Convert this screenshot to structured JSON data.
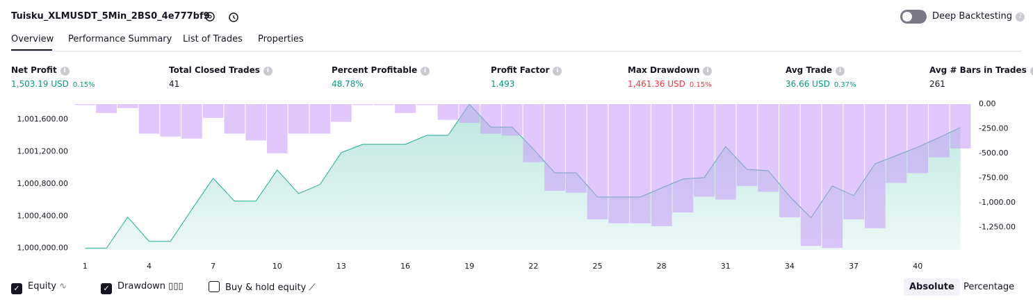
{
  "header": {
    "title": "Tuisku_XLMUSDT_5Min_2BS0_4e777bf9",
    "deep_backtesting": "Deep Backtesting"
  },
  "tabs": [
    "Overview",
    "Performance Summary",
    "List of Trades",
    "Properties"
  ],
  "metrics": [
    {
      "label": "Net Profit",
      "value": "1,503.19 USD",
      "pct": "0.15%",
      "color": "#089981"
    },
    {
      "label": "Total Closed Trades",
      "value": "41",
      "color": "#131722"
    },
    {
      "label": "Percent Profitable",
      "value": "48.78%",
      "color": "#089981"
    },
    {
      "label": "Profit Factor",
      "value": "1.493",
      "color": "#089981"
    },
    {
      "label": "Max Drawdown",
      "value": "1,461.36 USD",
      "pct": "0.15%",
      "color": "#f23645"
    },
    {
      "label": "Avg Trade",
      "value": "36.66 USD",
      "pct": "0.37%",
      "color": "#089981"
    },
    {
      "label": "Avg # Bars in Trades",
      "value": "261",
      "color": "#131722"
    }
  ],
  "chart_data": {
    "type": "combo",
    "x": [
      1,
      2,
      3,
      4,
      5,
      6,
      7,
      8,
      9,
      10,
      11,
      12,
      13,
      14,
      15,
      16,
      17,
      18,
      19,
      20,
      21,
      22,
      23,
      24,
      25,
      26,
      27,
      28,
      29,
      30,
      31,
      32,
      33,
      34,
      35,
      36,
      37,
      38,
      39,
      40,
      41,
      42
    ],
    "series": [
      {
        "name": "Equity",
        "type": "area",
        "color": "#22ab94",
        "axis": "y",
        "values": [
          1000000,
          1000000,
          1000387,
          1000086,
          1000086,
          1000482,
          1000869,
          1000585,
          1000585,
          1000972,
          1000679,
          1000791,
          1001187,
          1001290,
          1001290,
          1001290,
          1001402,
          1001402,
          1001789,
          1001505,
          1001505,
          1001230,
          1000937,
          1000937,
          1000636,
          1000636,
          1000636,
          1000748,
          1000860,
          1000877,
          1001264,
          1000980,
          1000963,
          1000645,
          1000378,
          1000774,
          1000654,
          1001049,
          1001152,
          1001256,
          1001376,
          1001500
        ]
      },
      {
        "name": "Drawdown",
        "type": "bar",
        "color": "#c89bfa",
        "axis": "y2",
        "values": [
          -10,
          -90,
          -40,
          -300,
          -330,
          -350,
          -140,
          -300,
          -370,
          -500,
          -300,
          -300,
          -180,
          -10,
          -10,
          -90,
          -10,
          -160,
          -190,
          -300,
          -320,
          -590,
          -880,
          -900,
          -1170,
          -1210,
          -1210,
          -1240,
          -1100,
          -940,
          -970,
          -830,
          -890,
          -1150,
          -1440,
          -1461,
          -1170,
          -1260,
          -800,
          -700,
          -540,
          -450
        ]
      }
    ],
    "xlim": [
      0.5,
      42.5
    ],
    "xticks": [
      1,
      4,
      7,
      10,
      13,
      16,
      19,
      22,
      25,
      28,
      31,
      34,
      37,
      40
    ],
    "ylim": [
      999980,
      1001790
    ],
    "yticks": [
      {
        "value": 1000000,
        "label": "1,000,000.00"
      },
      {
        "value": 1000400,
        "label": "1,000,400.00"
      },
      {
        "value": 1000800,
        "label": "1,000,800.00"
      },
      {
        "value": 1001200,
        "label": "1,001,200.00"
      },
      {
        "value": 1001600,
        "label": "1,001,600.00"
      }
    ],
    "y2lim": [
      -1480,
      0
    ],
    "y2ticks": [
      {
        "value": 0,
        "label": "0.00"
      },
      {
        "value": -250,
        "label": "-250.00"
      },
      {
        "value": -500,
        "label": "-500.00"
      },
      {
        "value": -750,
        "label": "-750.00"
      },
      {
        "value": -1000,
        "label": "-1,000.00"
      },
      {
        "value": -1250,
        "label": "-1,250.00"
      }
    ]
  },
  "controls": {
    "buy_hold": "Buy & hold equity",
    "absolute": "Absolute",
    "percentage": "Percentage"
  }
}
